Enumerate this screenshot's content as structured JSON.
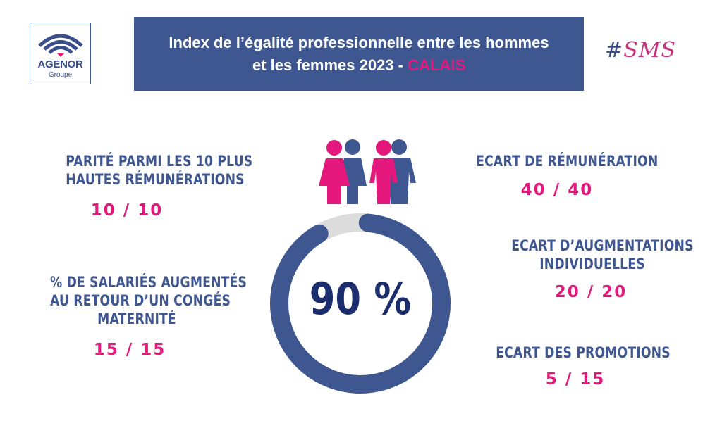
{
  "logo": {
    "name": "AGENOR",
    "sub": "Groupe"
  },
  "banner": {
    "line1": "Index de l’égalité professionnelle entre les hommes",
    "line2": "et les femmes 2023 - ",
    "city": "CALAIS"
  },
  "tag": {
    "hash": "#",
    "text": "SMS"
  },
  "total": {
    "value": "90 %",
    "fraction": 0.9
  },
  "indicators": {
    "parite": {
      "label1": "PARITÉ PARMI LES 10 PLUS",
      "label2": "HAUTES RÉMUNÉRATIONS",
      "score": "10 / 10"
    },
    "maternite": {
      "label1": "% DE SALARIÉS AUGMENTÉS",
      "label2": "AU RETOUR D’UN CONGÉS",
      "label3": "MATERNITÉ",
      "score": "15 / 15"
    },
    "remuneration": {
      "label1": "ECART DE RÉMUNÉRATION",
      "score": "40 / 40"
    },
    "augmentations": {
      "label1": "ECART D’AUGMENTATIONS",
      "label2": "INDIVIDUELLES",
      "score": "20 / 20"
    },
    "promotions": {
      "label1": "ECART DES PROMOTIONS",
      "score": "5 / 15"
    }
  },
  "colors": {
    "blue": "#3f5791",
    "pink": "#e5197d",
    "track": "#dcdcdc",
    "dark": "#1c2d6e"
  },
  "icons": {
    "logo": "agenor-wave-logo-icon",
    "people": "women-men-people-icon"
  }
}
